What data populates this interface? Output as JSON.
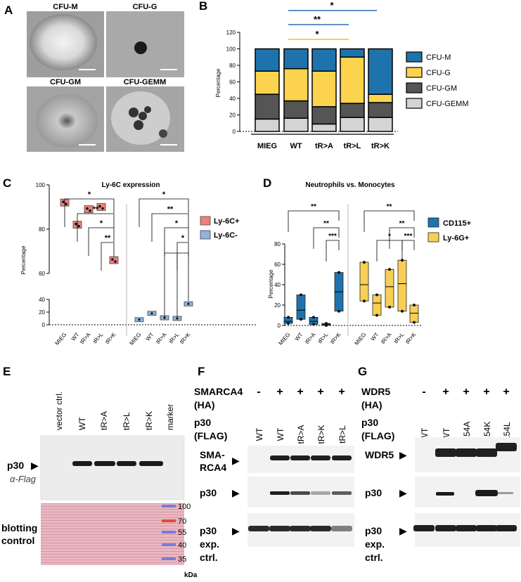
{
  "panel_labels": [
    "A",
    "B",
    "C",
    "D",
    "E",
    "F",
    "G"
  ],
  "colors": {
    "cfu_m": "#1f73ad",
    "cfu_g": "#fbd34d",
    "cfu_gm": "#555555",
    "cfu_gemm": "#d4d4d4",
    "ly6c_pos": "#f0807a",
    "ly6c_neg": "#8fb3da",
    "cd115": "#1f73ad",
    "ly6g": "#f7cf55",
    "sig_blue": "#2e6db4",
    "sig_yellow": "#e8c31a",
    "ponceau": "#e8b3bd"
  },
  "panelA": {
    "labels": [
      "CFU-M",
      "CFU-G",
      "CFU-GM",
      "CFU-GEMM"
    ]
  },
  "panelB": {
    "ylabel": "Percentage",
    "yticks": [
      "0",
      "20",
      "40",
      "60",
      "80",
      "100",
      "120"
    ],
    "legend": [
      "CFU-M",
      "CFU-G",
      "CFU-GM",
      "CFU-GEMM"
    ],
    "sig": [
      "*",
      "**",
      "*"
    ],
    "chart_data": {
      "type": "bar",
      "categories": [
        "MIEG",
        "WT",
        "tR>A",
        "tR>L",
        "tR>K"
      ],
      "series": [
        {
          "name": "CFU-GEMM",
          "values": [
            15,
            16,
            9,
            17,
            17
          ]
        },
        {
          "name": "CFU-GM",
          "values": [
            30,
            21,
            21,
            17,
            18
          ]
        },
        {
          "name": "CFU-G",
          "values": [
            28,
            39,
            43,
            56,
            10
          ]
        },
        {
          "name": "CFU-M",
          "values": [
            27,
            24,
            27,
            10,
            55
          ]
        }
      ],
      "ylim": [
        0,
        120
      ],
      "ylabel": "Percentage"
    }
  },
  "panelC": {
    "title": "Ly-6C expression",
    "ylabel": "Percentage",
    "yticks_upper": [
      "60",
      "80",
      "100"
    ],
    "yticks_lower": [
      "0",
      "20",
      "40"
    ],
    "legend": [
      "Ly-6C+",
      "Ly-6C-"
    ],
    "xlabels": [
      "MIEG",
      "WT",
      "tR>A",
      "tR>L",
      "tR>K",
      "MIEG",
      "WT",
      "tR>A",
      "tR>L",
      "tR>K"
    ],
    "sig": [
      "*",
      "**",
      "*",
      "**",
      "*",
      "**",
      "*",
      "*",
      "**"
    ],
    "chart_data": {
      "type": "box",
      "categories": [
        "MIEG",
        "WT",
        "tR>A",
        "tR>L",
        "tR>K"
      ],
      "series": [
        {
          "name": "Ly-6C+",
          "values": [
            92,
            82,
            89,
            90,
            66
          ]
        },
        {
          "name": "Ly-6C-",
          "values": [
            8,
            18,
            11,
            10,
            33
          ]
        }
      ],
      "ylim": [
        0,
        100
      ]
    }
  },
  "panelD": {
    "title": "Neutrophils vs. Monocytes",
    "ylabel": "Percentage",
    "yticks": [
      "0",
      "20",
      "40",
      "60",
      "80"
    ],
    "legend": [
      "CD115+",
      "Ly-6G+"
    ],
    "xlabels": [
      "MIEG",
      "WT",
      "tR>A",
      "tR>L",
      "tR>K",
      "MIEG",
      "WT",
      "tR>A",
      "tR>L",
      "tR>K"
    ],
    "sig": [
      "**",
      "**",
      "***",
      "**",
      "**",
      "*",
      "***"
    ],
    "chart_data": {
      "type": "box",
      "categories": [
        "MIEG",
        "WT",
        "tR>A",
        "tR>L",
        "tR>K"
      ],
      "series": [
        {
          "name": "CD115+",
          "values": [
            4,
            15,
            4,
            1,
            33
          ]
        },
        {
          "name": "Ly-6G+",
          "values": [
            40,
            22,
            38,
            41,
            12
          ]
        }
      ],
      "ylim": [
        0,
        80
      ]
    }
  },
  "panelE": {
    "lanes": [
      "vector ctrl.",
      "WT",
      "tR>A",
      "tR>L",
      "tR>K",
      "marker"
    ],
    "blot1_label1": "p30",
    "blot1_label2": "α-Flag",
    "blot2_label1": "blotting",
    "blot2_label2": "control",
    "markers": [
      "100",
      "70",
      "55",
      "40",
      "35"
    ],
    "unit": "kDa"
  },
  "panelF": {
    "row1_label1": "SMARCA4",
    "row1_label2": "(HA)",
    "row1_values": [
      "-",
      "+",
      "+",
      "+",
      "+"
    ],
    "row2_label1": "p30",
    "row2_label2": "(FLAG)",
    "lanes": [
      "WT",
      "WT",
      "tR>A",
      "tR>K",
      "tR>L"
    ],
    "blot_labels": [
      "SMA-",
      "RCA4",
      "p30",
      "p30",
      "exp.",
      "ctrl."
    ]
  },
  "panelG": {
    "row1_label1": "WDR5",
    "row1_label2": "(HA)",
    "row1_values": [
      "-",
      "+",
      "+",
      "+",
      "+"
    ],
    "row2_label1": "p30",
    "row2_label2": "(FLAG)",
    "lanes": [
      "WT",
      "WT",
      "R154A",
      "R154K",
      "R154L"
    ],
    "blot_labels": [
      "WDR5",
      "p30",
      "p30",
      "exp.",
      "ctrl."
    ]
  }
}
